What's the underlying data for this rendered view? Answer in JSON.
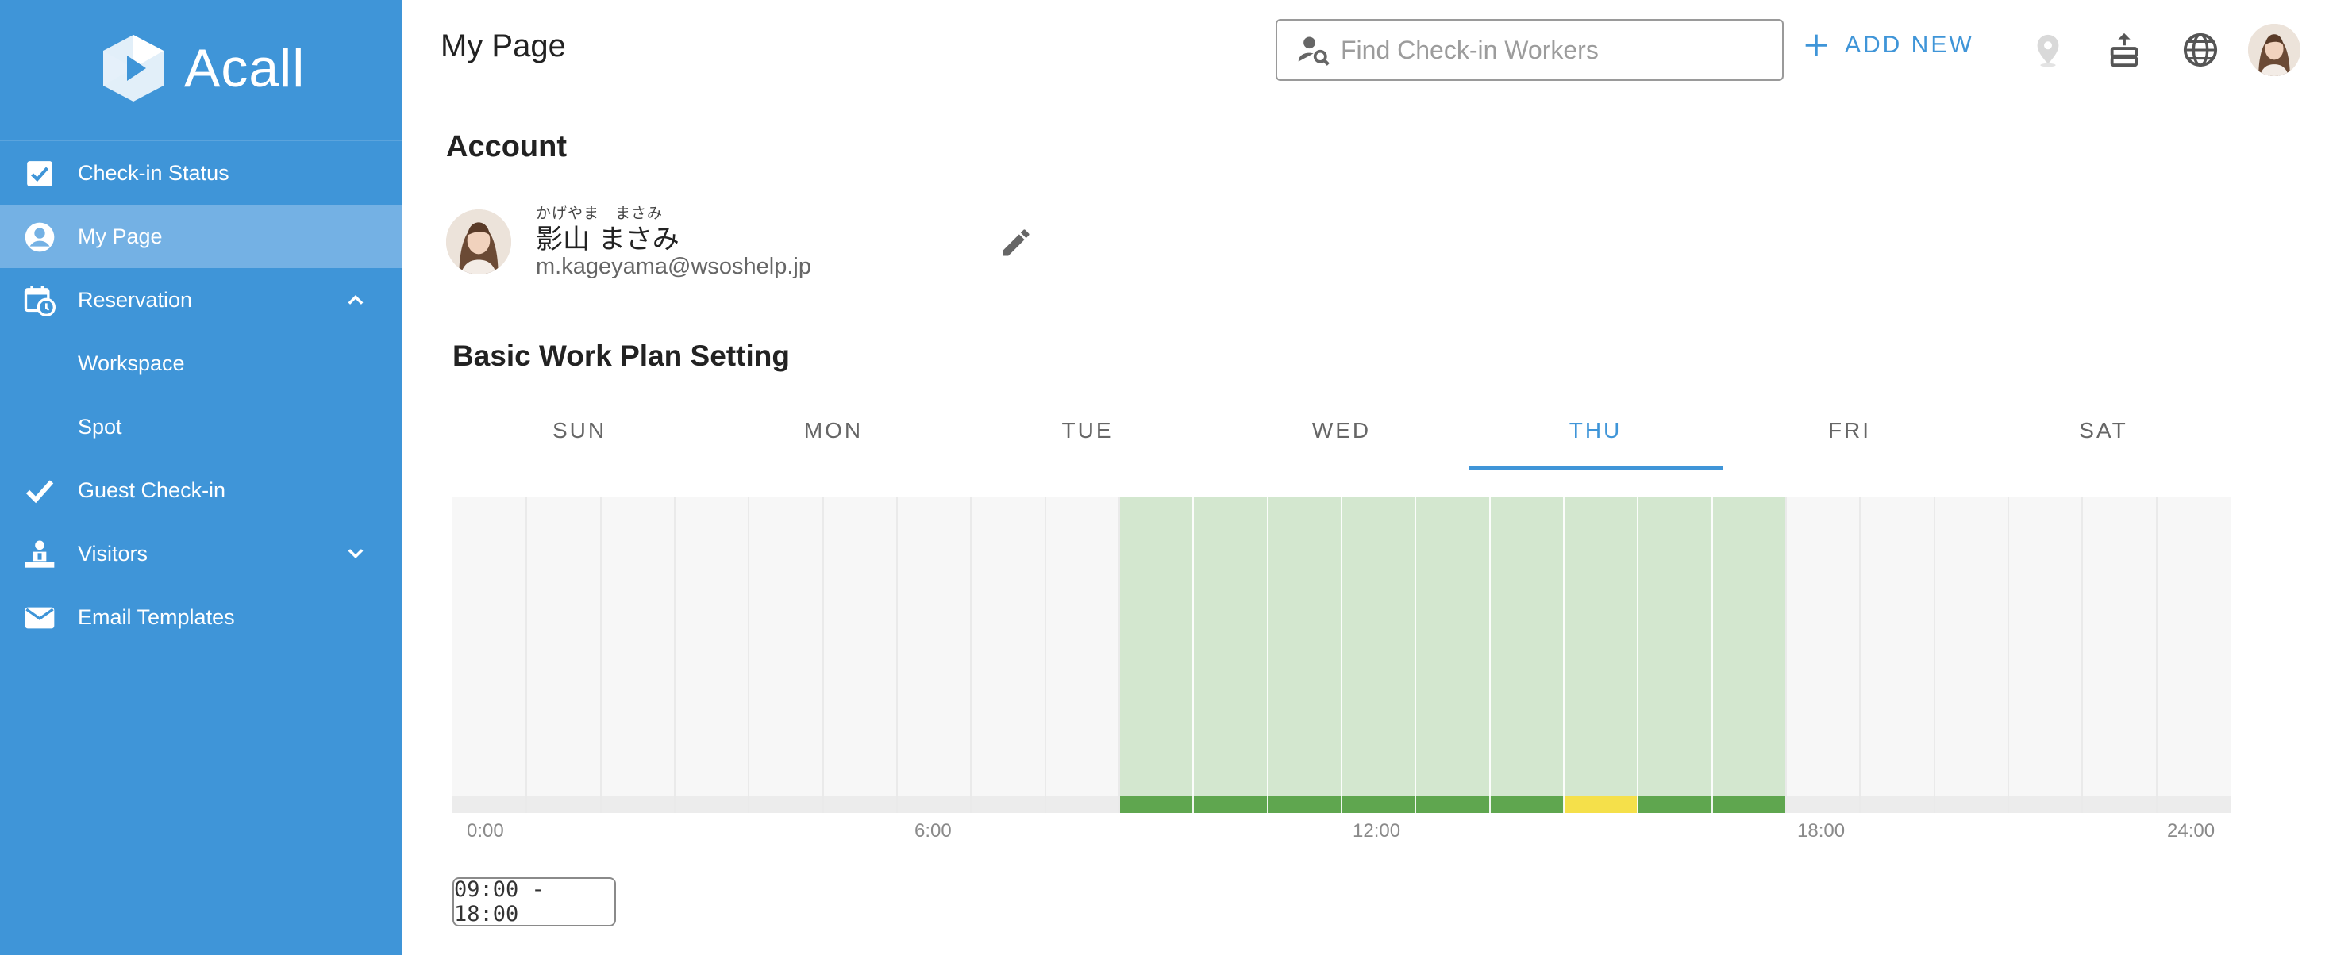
{
  "app": {
    "logo_text": "Acall",
    "accent_color": "#3f95d8"
  },
  "sidebar": {
    "items": [
      {
        "label": "Check-in Status",
        "icon": "checkbox-icon"
      },
      {
        "label": "My Page",
        "icon": "account-circle-icon",
        "active": true
      },
      {
        "label": "Reservation",
        "icon": "calendar-clock-icon",
        "expanded": true
      },
      {
        "label": "Workspace",
        "sub": true
      },
      {
        "label": "Spot",
        "sub": true
      },
      {
        "label": "Guest Check-in",
        "icon": "check-icon"
      },
      {
        "label": "Visitors",
        "icon": "visitors-icon",
        "expanded": false
      },
      {
        "label": "Email Templates",
        "icon": "mail-icon"
      }
    ]
  },
  "header": {
    "title": "My Page",
    "search_placeholder": "Find Check-in Workers",
    "add_new_label": "ADD NEW"
  },
  "account": {
    "heading": "Account",
    "name_ruby": "かげやま　まさみ",
    "name": "影山 まさみ",
    "email": "m.kageyama@wsoshelp.jp"
  },
  "work_plan": {
    "heading": "Basic Work Plan Setting",
    "days": [
      "SUN",
      "MON",
      "TUE",
      "WED",
      "THU",
      "FRI",
      "SAT"
    ],
    "selected_day": "THU",
    "range_label": "09:00 - 18:00",
    "axis_labels": [
      "0:00",
      "6:00",
      "12:00",
      "18:00",
      "24:00"
    ],
    "slot_hours": 0.5,
    "work_start_hour": 9,
    "work_end_hour": 18,
    "highlight_start_hour": 15,
    "highlight_end_hour": 16,
    "colors": {
      "work_fill": "#d3e7cf",
      "work_bar": "#5fa64f",
      "highlight_bar": "#f5e04a",
      "empty_bar": "#ececec",
      "divider": "#eaeaea"
    }
  }
}
